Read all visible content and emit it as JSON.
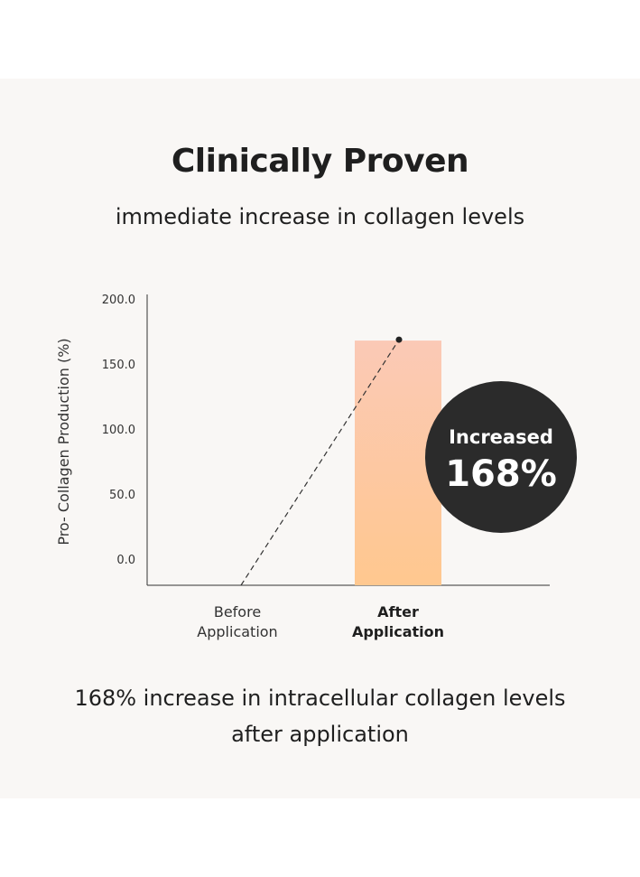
{
  "header": {
    "title": "Clinically Proven",
    "subtitle": "immediate increase in collagen levels"
  },
  "chart_data": {
    "type": "bar",
    "ylabel": "Pro- Collagen Production (%)",
    "yticks": [
      "0.0",
      "50.0",
      "100.0",
      "150.0",
      "200.0"
    ],
    "ylim": [
      0,
      200
    ],
    "categories": [
      {
        "line1": "Before",
        "line2": "Application",
        "emphasis": false
      },
      {
        "line1": "After",
        "line2": "Application",
        "emphasis": true
      }
    ],
    "values": [
      0,
      168
    ],
    "bar_color_top": "#fbc9b6",
    "bar_color_bottom": "#ffc88f",
    "trend_line": true,
    "badge": {
      "line1": "Increased",
      "line2": "168%",
      "color": "#2b2b2b"
    }
  },
  "footer": {
    "line1": "168% increase in intracellular collagen levels",
    "line2": "after application"
  }
}
